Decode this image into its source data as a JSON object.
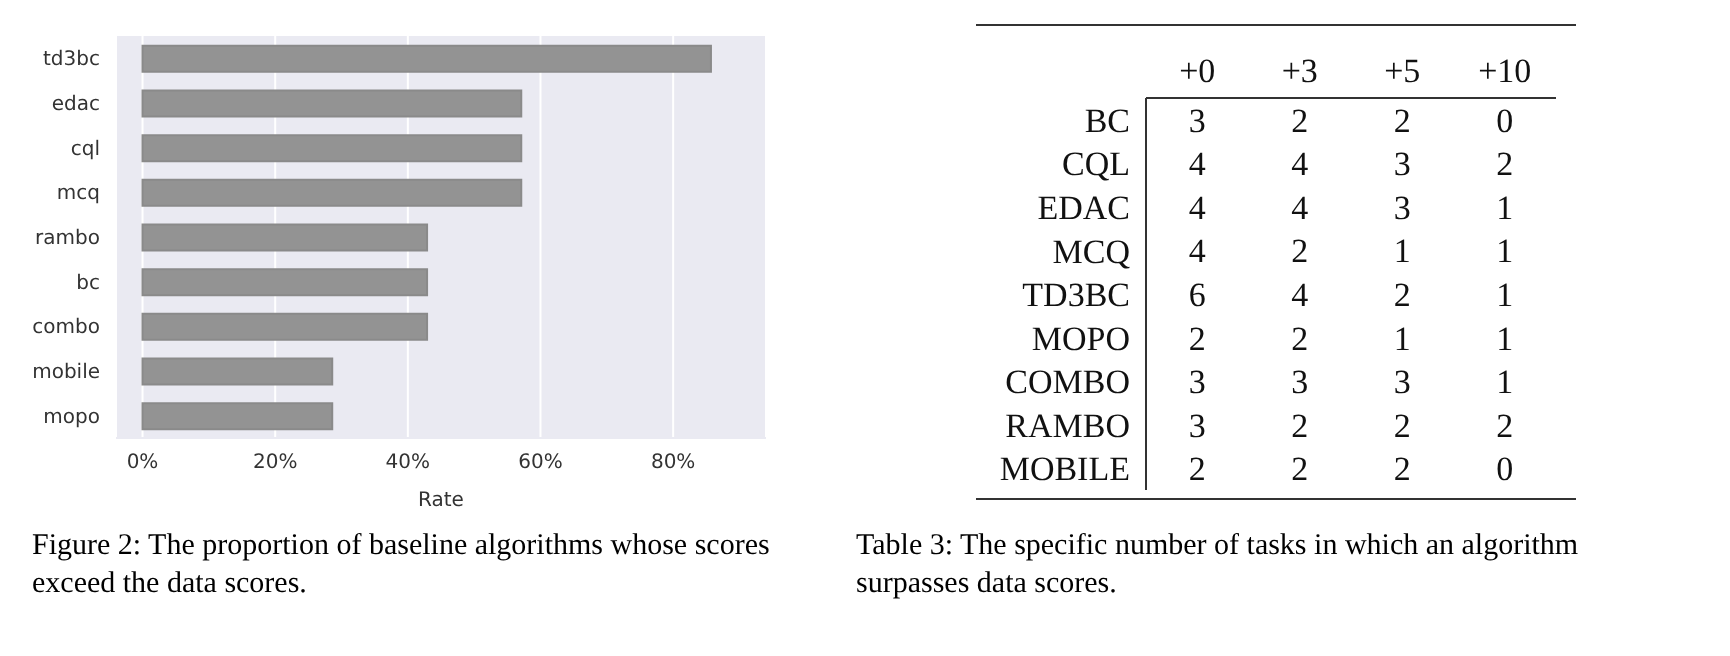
{
  "chart_data": [
    {
      "type": "bar",
      "orientation": "horizontal",
      "categories": [
        "td3bc",
        "edac",
        "cql",
        "mcq",
        "rambo",
        "bc",
        "combo",
        "mobile",
        "mopo"
      ],
      "values": [
        85.7,
        57.1,
        57.1,
        57.1,
        42.9,
        42.9,
        42.9,
        28.6,
        28.6
      ],
      "color": "#939393",
      "xlabel": "Rate",
      "xlim": [
        -4,
        94
      ],
      "xticks": [
        {
          "value": 0,
          "label": "0%"
        },
        {
          "value": 20,
          "label": "20%"
        },
        {
          "value": 40,
          "label": "40%"
        },
        {
          "value": 60,
          "label": "60%"
        },
        {
          "value": 80,
          "label": "80%"
        }
      ],
      "grid": "x",
      "annotations": [
        "Figure 2: The proportion of baseline algorithms whose scores exceed the data scores."
      ]
    },
    {
      "type": "heatmap",
      "categories": [
        "+0",
        "+3",
        "+5",
        "+10"
      ],
      "y_categories": [
        "BC",
        "CQL",
        "EDAC",
        "MCQ",
        "TD3BC",
        "MOPO",
        "COMBO",
        "RAMBO",
        "MOBILE"
      ],
      "data_labels": true,
      "cells": [
        [
          3,
          2,
          2,
          0
        ],
        [
          4,
          4,
          3,
          2
        ],
        [
          4,
          4,
          3,
          1
        ],
        [
          4,
          2,
          1,
          1
        ],
        [
          6,
          4,
          2,
          1
        ],
        [
          2,
          2,
          1,
          1
        ],
        [
          3,
          3,
          3,
          1
        ],
        [
          3,
          2,
          2,
          2
        ],
        [
          2,
          2,
          2,
          0
        ]
      ],
      "annotations": [
        "Table 3: The specific number of tasks in which an algorithm surpasses data scores."
      ]
    }
  ]
}
